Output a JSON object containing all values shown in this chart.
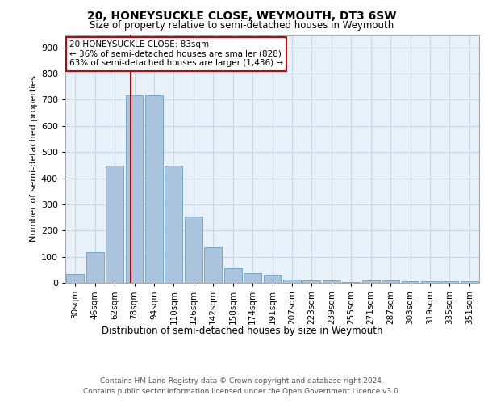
{
  "title1": "20, HONEYSUCKLE CLOSE, WEYMOUTH, DT3 6SW",
  "title2": "Size of property relative to semi-detached houses in Weymouth",
  "xlabel": "Distribution of semi-detached houses by size in Weymouth",
  "ylabel": "Number of semi-detached properties",
  "categories": [
    "30sqm",
    "46sqm",
    "62sqm",
    "78sqm",
    "94sqm",
    "110sqm",
    "126sqm",
    "142sqm",
    "158sqm",
    "174sqm",
    "191sqm",
    "207sqm",
    "223sqm",
    "239sqm",
    "255sqm",
    "271sqm",
    "287sqm",
    "303sqm",
    "319sqm",
    "335sqm",
    "351sqm"
  ],
  "values": [
    35,
    118,
    447,
    718,
    718,
    447,
    253,
    135,
    55,
    38,
    30,
    12,
    8,
    8,
    3,
    8,
    8,
    5,
    5,
    5,
    5
  ],
  "bar_color": "#aac4de",
  "bar_edge_color": "#6a9fc8",
  "grid_color": "#c8d8e8",
  "bg_color": "#e8f0f8",
  "marker_line_color": "#cc0000",
  "annotation_text": "20 HONEYSUCKLE CLOSE: 83sqm\n← 36% of semi-detached houses are smaller (828)\n63% of semi-detached houses are larger (1,436) →",
  "annotation_box_color": "#cc0000",
  "ylim": [
    0,
    950
  ],
  "yticks": [
    0,
    100,
    200,
    300,
    400,
    500,
    600,
    700,
    800,
    900
  ],
  "footer1": "Contains HM Land Registry data © Crown copyright and database right 2024.",
  "footer2": "Contains public sector information licensed under the Open Government Licence v3.0."
}
